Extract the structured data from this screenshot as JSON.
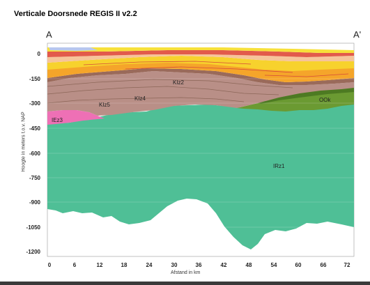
{
  "title": "Verticale Doorsnede REGIS II v2.2",
  "corner_left": "A",
  "corner_right": "A'",
  "y_axis_label": "Hoogte in meters t.o.v. NAP",
  "x_axis_label": "Afstand in km",
  "y_ticks": [
    "0",
    "-150",
    "-300",
    "-450",
    "-600",
    "-750",
    "-900",
    "-1050",
    "-1200"
  ],
  "x_ticks": [
    "0",
    "6",
    "12",
    "18",
    "24",
    "30",
    "36",
    "42",
    "48",
    "54",
    "60",
    "66",
    "72"
  ],
  "units": [
    "KIz2",
    "KIz4",
    "KIz5",
    "IEz3",
    "OOk",
    "IRz1"
  ],
  "colors": {
    "main_unit": "#4fbf96",
    "brown_unit": "#b98f87",
    "pink_unit": "#ee70b5",
    "green_unit": "#6b9a32",
    "dark_green_unit": "#4d7a22",
    "yellow": "#f7d22d",
    "orange": "#f5a52a",
    "red": "#e25a4b",
    "peach": "#f6c49a"
  }
}
